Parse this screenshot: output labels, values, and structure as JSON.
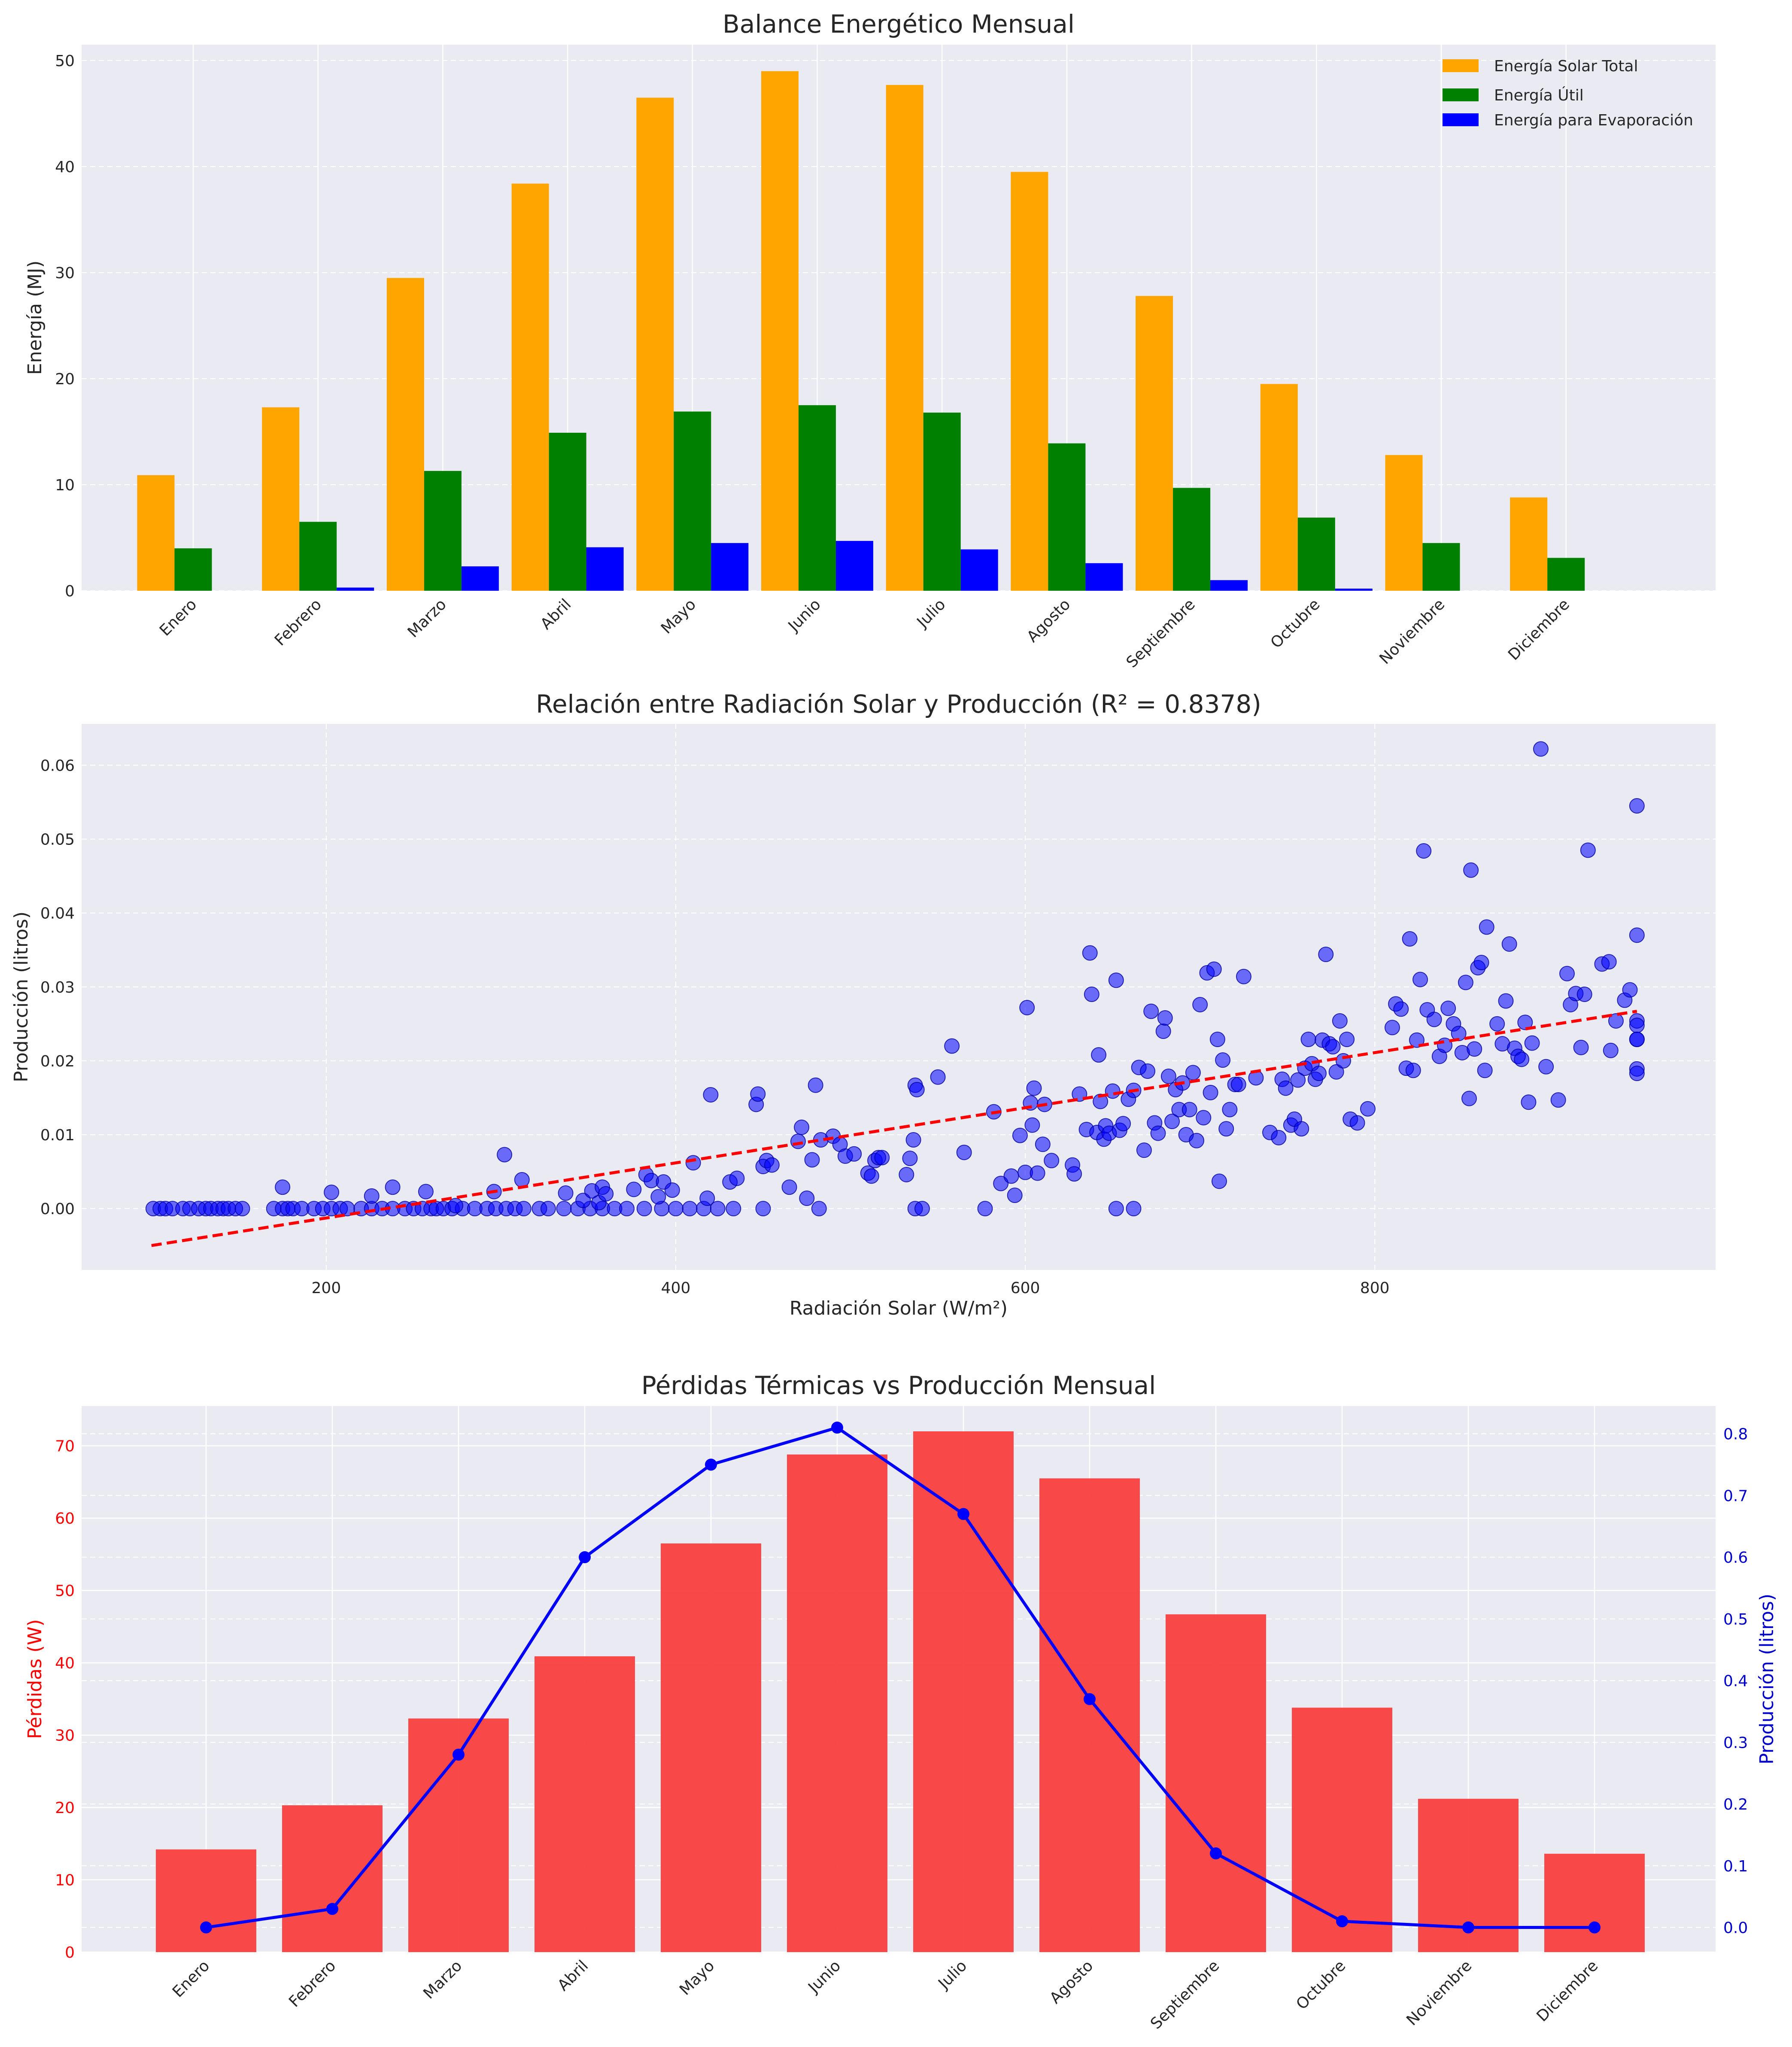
{
  "colors": {
    "solar": "#FFA500",
    "util": "#008000",
    "evap": "#0000FF",
    "loss": "#F83A3A",
    "prod": "#0000FF",
    "trend": "#FF0000",
    "plot_bg": "#EAEAF2",
    "red_text": "#FF0000",
    "blue_text": "#0000CC"
  },
  "chart_data": [
    {
      "type": "bar",
      "title": "Balance Energético Mensual",
      "xlabel": "",
      "ylabel": "Energía (MJ)",
      "ylim": [
        0,
        51.5
      ],
      "yticks": [
        0,
        10,
        20,
        30,
        40,
        50
      ],
      "categories": [
        "Enero",
        "Febrero",
        "Marzo",
        "Abril",
        "Mayo",
        "Junio",
        "Julio",
        "Agosto",
        "Septiembre",
        "Octubre",
        "Noviembre",
        "Diciembre"
      ],
      "series": [
        {
          "name": "Energía Solar Total",
          "values": [
            10.9,
            17.3,
            29.5,
            38.4,
            46.5,
            49.0,
            47.7,
            39.5,
            27.8,
            19.5,
            12.8,
            8.8
          ]
        },
        {
          "name": "Energía Útil",
          "values": [
            4.0,
            6.5,
            11.3,
            14.9,
            16.9,
            17.5,
            16.8,
            13.9,
            9.7,
            6.9,
            4.5,
            3.1
          ]
        },
        {
          "name": "Energía para Evaporación",
          "values": [
            0.0,
            0.3,
            2.3,
            4.1,
            4.5,
            4.7,
            3.9,
            2.6,
            1.0,
            0.2,
            0.0,
            0.0
          ]
        }
      ],
      "legend_position": "top-right",
      "grid": true
    },
    {
      "type": "scatter",
      "title": "Relación entre Radiación Solar y Producción (R² = 0.8378)",
      "xlabel": "Radiación Solar (W/m²)",
      "ylabel": "Producción (litros)",
      "xlim": [
        60,
        995
      ],
      "ylim": [
        -0.0083,
        0.0656
      ],
      "xticks": [
        200,
        400,
        600,
        800
      ],
      "yticks": [
        0.0,
        0.01,
        0.02,
        0.03,
        0.04,
        0.05,
        0.06
      ],
      "grid": true,
      "trendline": {
        "x": [
          100,
          950
        ],
        "y": [
          -0.005,
          0.0267
        ]
      },
      "points": [
        [
          101,
          0
        ],
        [
          105,
          0
        ],
        [
          108,
          0
        ],
        [
          112,
          0
        ],
        [
          118,
          0
        ],
        [
          122,
          0
        ],
        [
          127,
          0
        ],
        [
          131,
          0
        ],
        [
          134,
          0
        ],
        [
          138,
          0
        ],
        [
          141,
          0
        ],
        [
          144,
          0
        ],
        [
          148,
          0
        ],
        [
          152,
          0
        ],
        [
          170,
          0
        ],
        [
          175,
          0
        ],
        [
          178,
          0
        ],
        [
          181,
          0
        ],
        [
          186,
          0
        ],
        [
          193,
          0
        ],
        [
          198,
          0
        ],
        [
          203,
          0
        ],
        [
          208,
          0
        ],
        [
          212,
          0
        ],
        [
          220,
          0
        ],
        [
          226,
          0
        ],
        [
          232,
          0
        ],
        [
          238,
          0
        ],
        [
          245,
          0
        ],
        [
          250,
          0
        ],
        [
          255,
          0
        ],
        [
          260,
          0
        ],
        [
          263,
          0
        ],
        [
          267,
          0
        ],
        [
          272,
          0
        ],
        [
          278,
          0
        ],
        [
          285,
          0
        ],
        [
          292,
          0
        ],
        [
          297,
          0
        ],
        [
          303,
          0
        ],
        [
          308,
          0
        ],
        [
          313,
          0
        ],
        [
          322,
          0
        ],
        [
          327,
          0
        ],
        [
          336,
          0
        ],
        [
          344,
          0
        ],
        [
          351,
          0
        ],
        [
          358,
          0
        ],
        [
          365,
          0
        ],
        [
          372,
          0
        ],
        [
          382,
          0
        ],
        [
          392,
          0
        ],
        [
          400,
          0
        ],
        [
          408,
          0
        ],
        [
          416,
          0
        ],
        [
          424,
          0
        ],
        [
          433,
          0
        ],
        [
          450,
          0
        ],
        [
          482,
          0
        ],
        [
          537,
          0
        ],
        [
          541,
          0
        ],
        [
          577,
          0
        ],
        [
          652,
          0
        ],
        [
          662,
          0
        ],
        [
          175,
          0.0029
        ],
        [
          203,
          0.0022
        ],
        [
          226,
          0.0017
        ],
        [
          238,
          0.0029
        ],
        [
          257,
          0.0023
        ],
        [
          274,
          0.0004
        ],
        [
          296,
          0.0023
        ],
        [
          302,
          0.0073
        ],
        [
          312,
          0.0039
        ],
        [
          337,
          0.0021
        ],
        [
          347,
          0.0011
        ],
        [
          352,
          0.0024
        ],
        [
          356,
          0.0008
        ],
        [
          358,
          0.0029
        ],
        [
          360,
          0.002
        ],
        [
          376,
          0.0026
        ],
        [
          383,
          0.0046
        ],
        [
          386,
          0.0038
        ],
        [
          390,
          0.0016
        ],
        [
          393,
          0.0036
        ],
        [
          398,
          0.0025
        ],
        [
          410,
          0.0062
        ],
        [
          418,
          0.0014
        ],
        [
          420,
          0.0154
        ],
        [
          431,
          0.0036
        ],
        [
          435,
          0.0041
        ],
        [
          446,
          0.0141
        ],
        [
          447,
          0.0155
        ],
        [
          450,
          0.0057
        ],
        [
          452,
          0.0065
        ],
        [
          455,
          0.0059
        ],
        [
          465,
          0.0029
        ],
        [
          470,
          0.0091
        ],
        [
          472,
          0.011
        ],
        [
          475,
          0.0014
        ],
        [
          478,
          0.0066
        ],
        [
          480,
          0.0167
        ],
        [
          483,
          0.0093
        ],
        [
          490,
          0.0098
        ],
        [
          494,
          0.0087
        ],
        [
          497,
          0.0071
        ],
        [
          502,
          0.0074
        ],
        [
          510,
          0.0048
        ],
        [
          512,
          0.0044
        ],
        [
          514,
          0.0065
        ],
        [
          516,
          0.0069
        ],
        [
          518,
          0.0069
        ],
        [
          532,
          0.0046
        ],
        [
          534,
          0.0068
        ],
        [
          536,
          0.0093
        ],
        [
          537,
          0.0167
        ],
        [
          538,
          0.0161
        ],
        [
          550,
          0.0178
        ],
        [
          558,
          0.022
        ],
        [
          565,
          0.0076
        ],
        [
          582,
          0.0131
        ],
        [
          586,
          0.0034
        ],
        [
          592,
          0.0044
        ],
        [
          594,
          0.0018
        ],
        [
          597,
          0.0099
        ],
        [
          600,
          0.0049
        ],
        [
          601,
          0.0272
        ],
        [
          603,
          0.0143
        ],
        [
          604,
          0.0113
        ],
        [
          605,
          0.0163
        ],
        [
          607,
          0.0048
        ],
        [
          610,
          0.0087
        ],
        [
          611,
          0.0141
        ],
        [
          615,
          0.0065
        ],
        [
          627,
          0.0059
        ],
        [
          628,
          0.0047
        ],
        [
          631,
          0.0155
        ],
        [
          635,
          0.0107
        ],
        [
          637,
          0.0346
        ],
        [
          638,
          0.029
        ],
        [
          641,
          0.0103
        ],
        [
          642,
          0.0208
        ],
        [
          643,
          0.0145
        ],
        [
          645,
          0.0094
        ],
        [
          646,
          0.0112
        ],
        [
          648,
          0.0102
        ],
        [
          650,
          0.0159
        ],
        [
          652,
          0.0309
        ],
        [
          654,
          0.0106
        ],
        [
          656,
          0.0115
        ],
        [
          659,
          0.0148
        ],
        [
          662,
          0.016
        ],
        [
          665,
          0.0191
        ],
        [
          668,
          0.0079
        ],
        [
          670,
          0.0186
        ],
        [
          672,
          0.0267
        ],
        [
          674,
          0.0116
        ],
        [
          676,
          0.0102
        ],
        [
          679,
          0.024
        ],
        [
          680,
          0.0258
        ],
        [
          682,
          0.0179
        ],
        [
          684,
          0.0118
        ],
        [
          686,
          0.0161
        ],
        [
          688,
          0.0134
        ],
        [
          690,
          0.017
        ],
        [
          692,
          0.01
        ],
        [
          694,
          0.0134
        ],
        [
          696,
          0.0184
        ],
        [
          698,
          0.0092
        ],
        [
          700,
          0.0276
        ],
        [
          702,
          0.0123
        ],
        [
          704,
          0.0319
        ],
        [
          706,
          0.0157
        ],
        [
          708,
          0.0324
        ],
        [
          710,
          0.0229
        ],
        [
          711,
          0.0037
        ],
        [
          713,
          0.0201
        ],
        [
          715,
          0.0108
        ],
        [
          717,
          0.0134
        ],
        [
          720,
          0.0168
        ],
        [
          722,
          0.0168
        ],
        [
          725,
          0.0314
        ],
        [
          732,
          0.0177
        ],
        [
          740,
          0.0103
        ],
        [
          745,
          0.0096
        ],
        [
          747,
          0.0175
        ],
        [
          749,
          0.0163
        ],
        [
          752,
          0.0113
        ],
        [
          754,
          0.0121
        ],
        [
          756,
          0.0174
        ],
        [
          758,
          0.0108
        ],
        [
          760,
          0.019
        ],
        [
          762,
          0.0229
        ],
        [
          764,
          0.0196
        ],
        [
          766,
          0.0175
        ],
        [
          768,
          0.0183
        ],
        [
          770,
          0.0228
        ],
        [
          772,
          0.0344
        ],
        [
          774,
          0.0223
        ],
        [
          776,
          0.0219
        ],
        [
          778,
          0.0185
        ],
        [
          780,
          0.0254
        ],
        [
          782,
          0.02
        ],
        [
          784,
          0.0229
        ],
        [
          786,
          0.0121
        ],
        [
          790,
          0.0116
        ],
        [
          796,
          0.0135
        ],
        [
          810,
          0.0245
        ],
        [
          812,
          0.0277
        ],
        [
          815,
          0.027
        ],
        [
          818,
          0.019
        ],
        [
          820,
          0.0365
        ],
        [
          822,
          0.0187
        ],
        [
          824,
          0.0228
        ],
        [
          826,
          0.031
        ],
        [
          828,
          0.0484
        ],
        [
          830,
          0.0269
        ],
        [
          834,
          0.0256
        ],
        [
          837,
          0.0206
        ],
        [
          840,
          0.0221
        ],
        [
          842,
          0.0271
        ],
        [
          845,
          0.025
        ],
        [
          848,
          0.0237
        ],
        [
          850,
          0.0211
        ],
        [
          852,
          0.0306
        ],
        [
          854,
          0.0149
        ],
        [
          855,
          0.0458
        ],
        [
          857,
          0.0216
        ],
        [
          859,
          0.0326
        ],
        [
          861,
          0.0333
        ],
        [
          863,
          0.0187
        ],
        [
          864,
          0.0381
        ],
        [
          870,
          0.025
        ],
        [
          873,
          0.0223
        ],
        [
          875,
          0.0281
        ],
        [
          877,
          0.0358
        ],
        [
          880,
          0.0217
        ],
        [
          882,
          0.0206
        ],
        [
          884,
          0.0202
        ],
        [
          886,
          0.0252
        ],
        [
          888,
          0.0144
        ],
        [
          890,
          0.0224
        ],
        [
          895,
          0.0622
        ],
        [
          898,
          0.0192
        ],
        [
          905,
          0.0147
        ],
        [
          910,
          0.0318
        ],
        [
          912,
          0.0276
        ],
        [
          915,
          0.0291
        ],
        [
          918,
          0.0218
        ],
        [
          920,
          0.029
        ],
        [
          922,
          0.0485
        ],
        [
          930,
          0.0331
        ],
        [
          934,
          0.0334
        ],
        [
          935,
          0.0214
        ],
        [
          938,
          0.0254
        ],
        [
          943,
          0.0282
        ],
        [
          946,
          0.0296
        ],
        [
          950,
          0.0545
        ],
        [
          950,
          0.037
        ],
        [
          950,
          0.0254
        ],
        [
          950,
          0.0248
        ],
        [
          950,
          0.0229
        ],
        [
          950,
          0.0229
        ],
        [
          950,
          0.0189
        ],
        [
          950,
          0.0183
        ]
      ]
    },
    {
      "type": "bar",
      "title": "Pérdidas Térmicas vs Producción Mensual",
      "xlabel": "",
      "ylabel": "Pérdidas (W)",
      "ylabel_right": "Producción (litros)",
      "ylim": [
        0,
        75.5
      ],
      "ylim_right": [
        -0.04,
        0.845
      ],
      "yticks": [
        0,
        10,
        20,
        30,
        40,
        50,
        60,
        70
      ],
      "yticks_right": [
        0.0,
        0.1,
        0.2,
        0.3,
        0.4,
        0.5,
        0.6,
        0.7,
        0.8
      ],
      "categories": [
        "Enero",
        "Febrero",
        "Marzo",
        "Abril",
        "Mayo",
        "Junio",
        "Julio",
        "Agosto",
        "Septiembre",
        "Octubre",
        "Noviembre",
        "Diciembre"
      ],
      "bars": [
        14.2,
        20.3,
        32.3,
        40.9,
        56.5,
        68.8,
        72.0,
        65.5,
        46.7,
        33.8,
        21.2,
        13.6
      ],
      "line": [
        0.0,
        0.03,
        0.28,
        0.6,
        0.75,
        0.81,
        0.67,
        0.37,
        0.12,
        0.01,
        0.0,
        0.0
      ],
      "grid": true
    }
  ]
}
